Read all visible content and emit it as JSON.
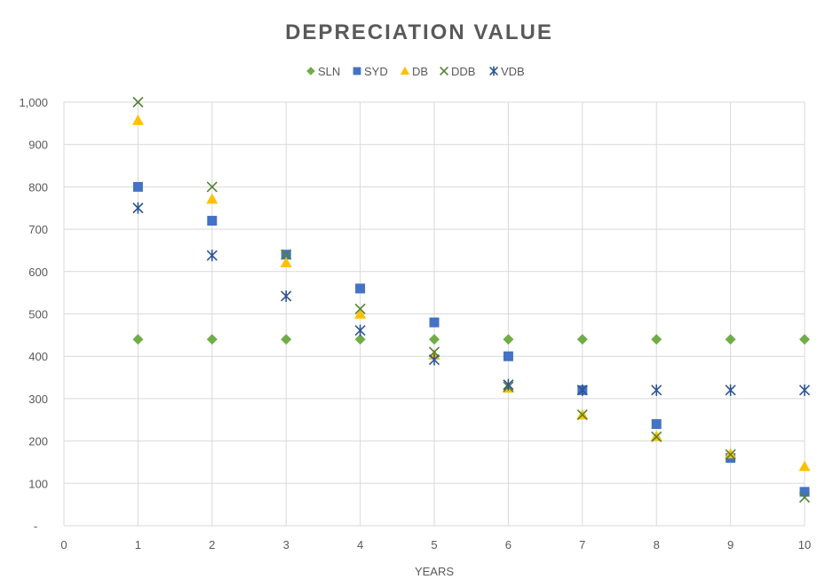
{
  "chart_data": {
    "type": "scatter",
    "title": "DEPRECIATION VALUE",
    "xlabel": "YEARS",
    "ylabel": "",
    "xlim": [
      0,
      10
    ],
    "ylim": [
      0,
      1000
    ],
    "x_ticks": [
      0,
      1,
      2,
      3,
      4,
      5,
      6,
      7,
      8,
      9,
      10
    ],
    "x_tick_labels": [
      "0",
      "1",
      "2",
      "3",
      "4",
      "5",
      "6",
      "7",
      "8",
      "9",
      "10"
    ],
    "y_ticks": [
      0,
      100,
      200,
      300,
      400,
      500,
      600,
      700,
      800,
      900,
      1000
    ],
    "y_tick_labels": [
      "-",
      "100",
      "200",
      "300",
      "400",
      "500",
      "600",
      "700",
      "800",
      "900",
      "1,000"
    ],
    "grid": true,
    "legend_position": "top",
    "series": [
      {
        "name": "SLN",
        "marker": "diamond",
        "color": "#70ad47",
        "x": [
          1,
          2,
          3,
          4,
          5,
          6,
          7,
          8,
          9,
          10
        ],
        "values": [
          440,
          440,
          440,
          440,
          440,
          440,
          440,
          440,
          440,
          440
        ]
      },
      {
        "name": "SYD",
        "marker": "square",
        "color": "#4472c4",
        "x": [
          1,
          2,
          3,
          4,
          5,
          6,
          7,
          8,
          9,
          10
        ],
        "values": [
          800,
          720,
          640,
          560,
          480,
          400,
          320,
          240,
          160,
          80
        ]
      },
      {
        "name": "DB",
        "marker": "triangle",
        "color": "#ffc000",
        "x": [
          1,
          2,
          3,
          4,
          5,
          6,
          7,
          8,
          9,
          10
        ],
        "values": [
          957,
          771,
          621,
          500,
          403,
          325,
          262,
          211,
          170,
          140
        ]
      },
      {
        "name": "DDB",
        "marker": "x",
        "color": "#548235",
        "x": [
          1,
          2,
          3,
          4,
          5,
          6,
          7,
          8,
          9,
          10
        ],
        "values": [
          1000,
          800,
          640,
          512,
          410,
          328,
          262,
          210,
          168,
          67
        ]
      },
      {
        "name": "VDB",
        "marker": "asterisk",
        "color": "#2f5597",
        "x": [
          1,
          2,
          3,
          4,
          5,
          6,
          7,
          8,
          9,
          10
        ],
        "values": [
          750,
          638,
          542,
          461,
          392,
          333,
          320,
          320,
          320,
          320
        ]
      }
    ]
  }
}
